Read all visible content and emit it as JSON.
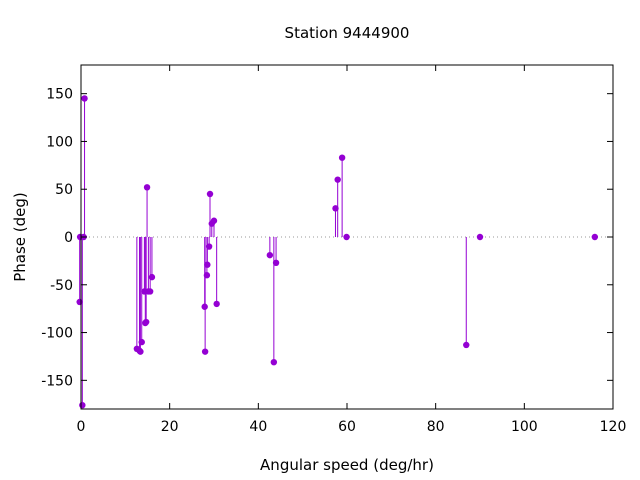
{
  "chart_data": {
    "type": "scatter",
    "style": "stem",
    "title": "Station 9444900",
    "xlabel": "Angular speed (deg/hr)",
    "ylabel": "Phase (deg)",
    "xlim": [
      0,
      120
    ],
    "ylim": [
      -180,
      180
    ],
    "xticks": [
      0,
      20,
      40,
      60,
      80,
      100,
      120
    ],
    "yticks": [
      -150,
      -100,
      -50,
      0,
      50,
      100,
      150
    ],
    "grid": false,
    "zero_line": "dotted",
    "color": "#9400d3",
    "points": [
      {
        "x": -0.2,
        "y": 0
      },
      {
        "x": -0.3,
        "y": -68
      },
      {
        "x": 0.3,
        "y": -176
      },
      {
        "x": 0.6,
        "y": 0
      },
      {
        "x": 0.8,
        "y": 145
      },
      {
        "x": 12.6,
        "y": -117
      },
      {
        "x": 13.2,
        "y": -119
      },
      {
        "x": 13.4,
        "y": -120
      },
      {
        "x": 13.7,
        "y": -110
      },
      {
        "x": 14.3,
        "y": -57
      },
      {
        "x": 14.5,
        "y": -90
      },
      {
        "x": 14.7,
        "y": -89
      },
      {
        "x": 14.9,
        "y": 52
      },
      {
        "x": 15.2,
        "y": -57
      },
      {
        "x": 15.6,
        "y": -57
      },
      {
        "x": 16.0,
        "y": -42
      },
      {
        "x": 27.9,
        "y": -73
      },
      {
        "x": 28.0,
        "y": -120
      },
      {
        "x": 28.4,
        "y": -40
      },
      {
        "x": 28.5,
        "y": -29
      },
      {
        "x": 28.9,
        "y": -10
      },
      {
        "x": 29.1,
        "y": 45
      },
      {
        "x": 29.5,
        "y": 14
      },
      {
        "x": 30.0,
        "y": 17
      },
      {
        "x": 30.6,
        "y": -70
      },
      {
        "x": 42.6,
        "y": -19
      },
      {
        "x": 43.5,
        "y": -131
      },
      {
        "x": 44.0,
        "y": -27
      },
      {
        "x": 57.4,
        "y": 30
      },
      {
        "x": 57.9,
        "y": 60
      },
      {
        "x": 58.9,
        "y": 83
      },
      {
        "x": 59.9,
        "y": 0
      },
      {
        "x": 86.9,
        "y": -113
      },
      {
        "x": 90.0,
        "y": 0
      },
      {
        "x": 115.9,
        "y": 0
      }
    ]
  }
}
